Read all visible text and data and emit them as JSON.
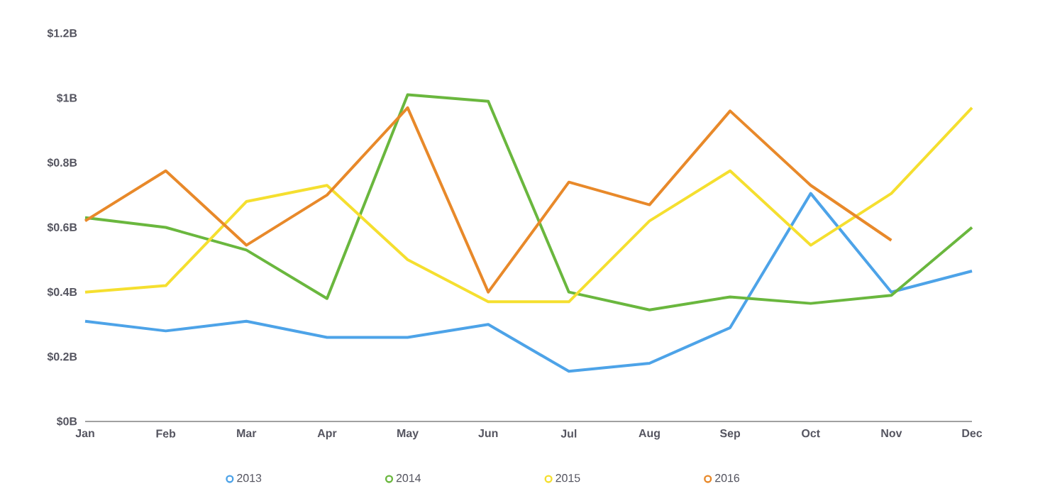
{
  "chart_data": {
    "type": "line",
    "categories": [
      "Jan",
      "Feb",
      "Mar",
      "Apr",
      "May",
      "Jun",
      "Jul",
      "Aug",
      "Sep",
      "Oct",
      "Nov",
      "Dec"
    ],
    "ylim": [
      0,
      1.2
    ],
    "yticks": [
      {
        "value": 0,
        "label": "$0B"
      },
      {
        "value": 0.2,
        "label": "$0.2B"
      },
      {
        "value": 0.4,
        "label": "$0.4B"
      },
      {
        "value": 0.6,
        "label": "$0.6B"
      },
      {
        "value": 0.8,
        "label": "$0.8B"
      },
      {
        "value": 1,
        "label": "$1B"
      },
      {
        "value": 1.2,
        "label": "$1.2B"
      }
    ],
    "legend": "bottom",
    "grid": false,
    "series": [
      {
        "name": "2013",
        "color": "#4da3e8",
        "values": [
          0.31,
          0.28,
          0.31,
          0.26,
          0.26,
          0.3,
          0.155,
          0.18,
          0.29,
          0.705,
          0.4,
          0.465
        ]
      },
      {
        "name": "2014",
        "color": "#6ab73e",
        "values": [
          0.63,
          0.6,
          0.53,
          0.38,
          1.01,
          0.99,
          0.4,
          0.345,
          0.385,
          0.365,
          0.39,
          0.6
        ]
      },
      {
        "name": "2015",
        "color": "#f5df2f",
        "values": [
          0.4,
          0.42,
          0.68,
          0.73,
          0.5,
          0.37,
          0.37,
          0.62,
          0.775,
          0.545,
          0.705,
          0.97
        ]
      },
      {
        "name": "2016",
        "color": "#e8892a",
        "values": [
          0.62,
          0.775,
          0.545,
          0.7,
          0.97,
          0.4,
          0.74,
          0.67,
          0.96,
          0.73,
          0.56,
          null
        ]
      }
    ]
  }
}
